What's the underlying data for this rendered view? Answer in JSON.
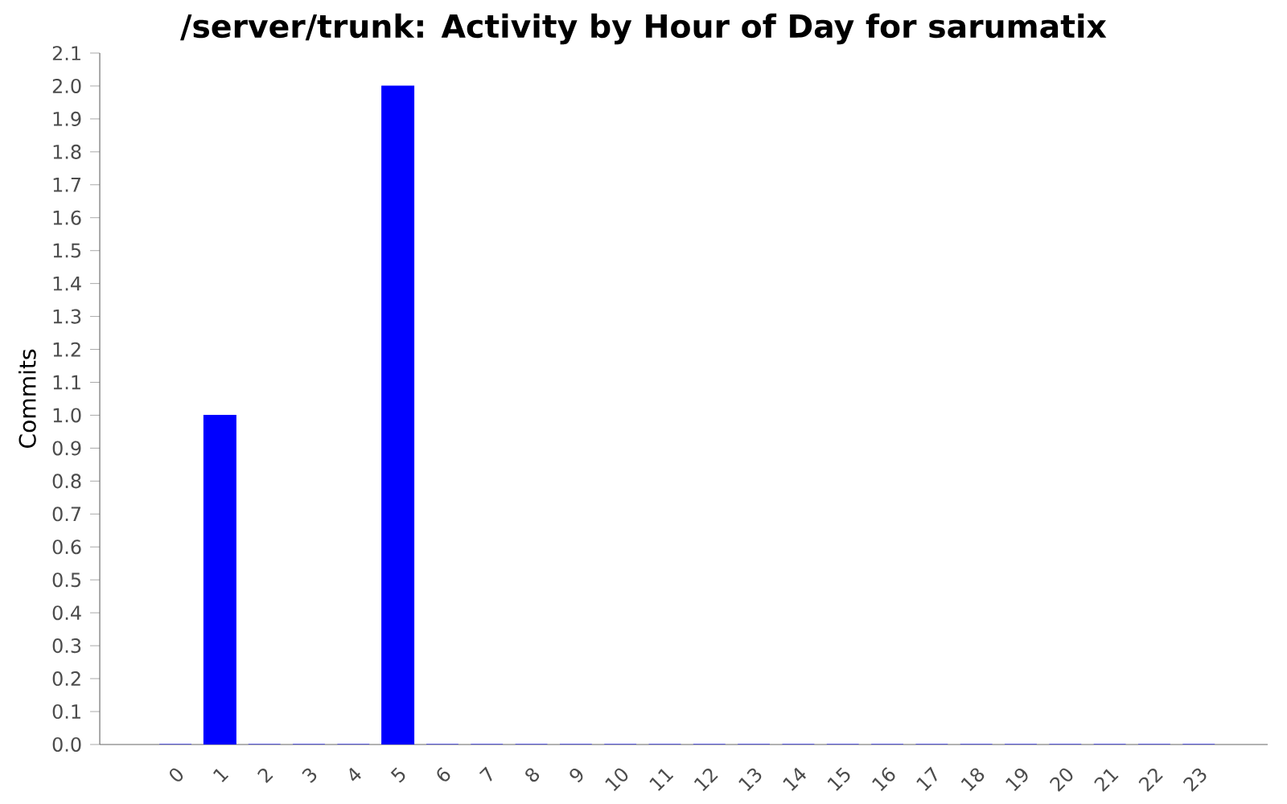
{
  "chart_data": {
    "type": "bar",
    "title": "/server/trunk: Activity by Hour of Day for sarumatix",
    "ylabel": "Commits",
    "categories": [
      "0",
      "1",
      "2",
      "3",
      "4",
      "5",
      "6",
      "7",
      "8",
      "9",
      "10",
      "11",
      "12",
      "13",
      "14",
      "15",
      "16",
      "17",
      "18",
      "19",
      "20",
      "21",
      "22",
      "23"
    ],
    "values": [
      0,
      1,
      0,
      0,
      0,
      2,
      0,
      0,
      0,
      0,
      0,
      0,
      0,
      0,
      0,
      0,
      0,
      0,
      0,
      0,
      0,
      0,
      0,
      0
    ],
    "color": "#0000ff",
    "ylim": [
      0,
      2.1
    ],
    "yticks": [
      {
        "value": 0,
        "label": "0.0"
      },
      0.1,
      0.2,
      0.3,
      0.4,
      0.5,
      0.6,
      0.7,
      0.8,
      0.9,
      {
        "value": 1,
        "label": "1.0"
      },
      1.1,
      1.2,
      1.3,
      1.4,
      1.5,
      1.6,
      1.7,
      1.8,
      1.9,
      {
        "value": 2,
        "label": "2.0"
      },
      2.1
    ],
    "grid": false
  }
}
